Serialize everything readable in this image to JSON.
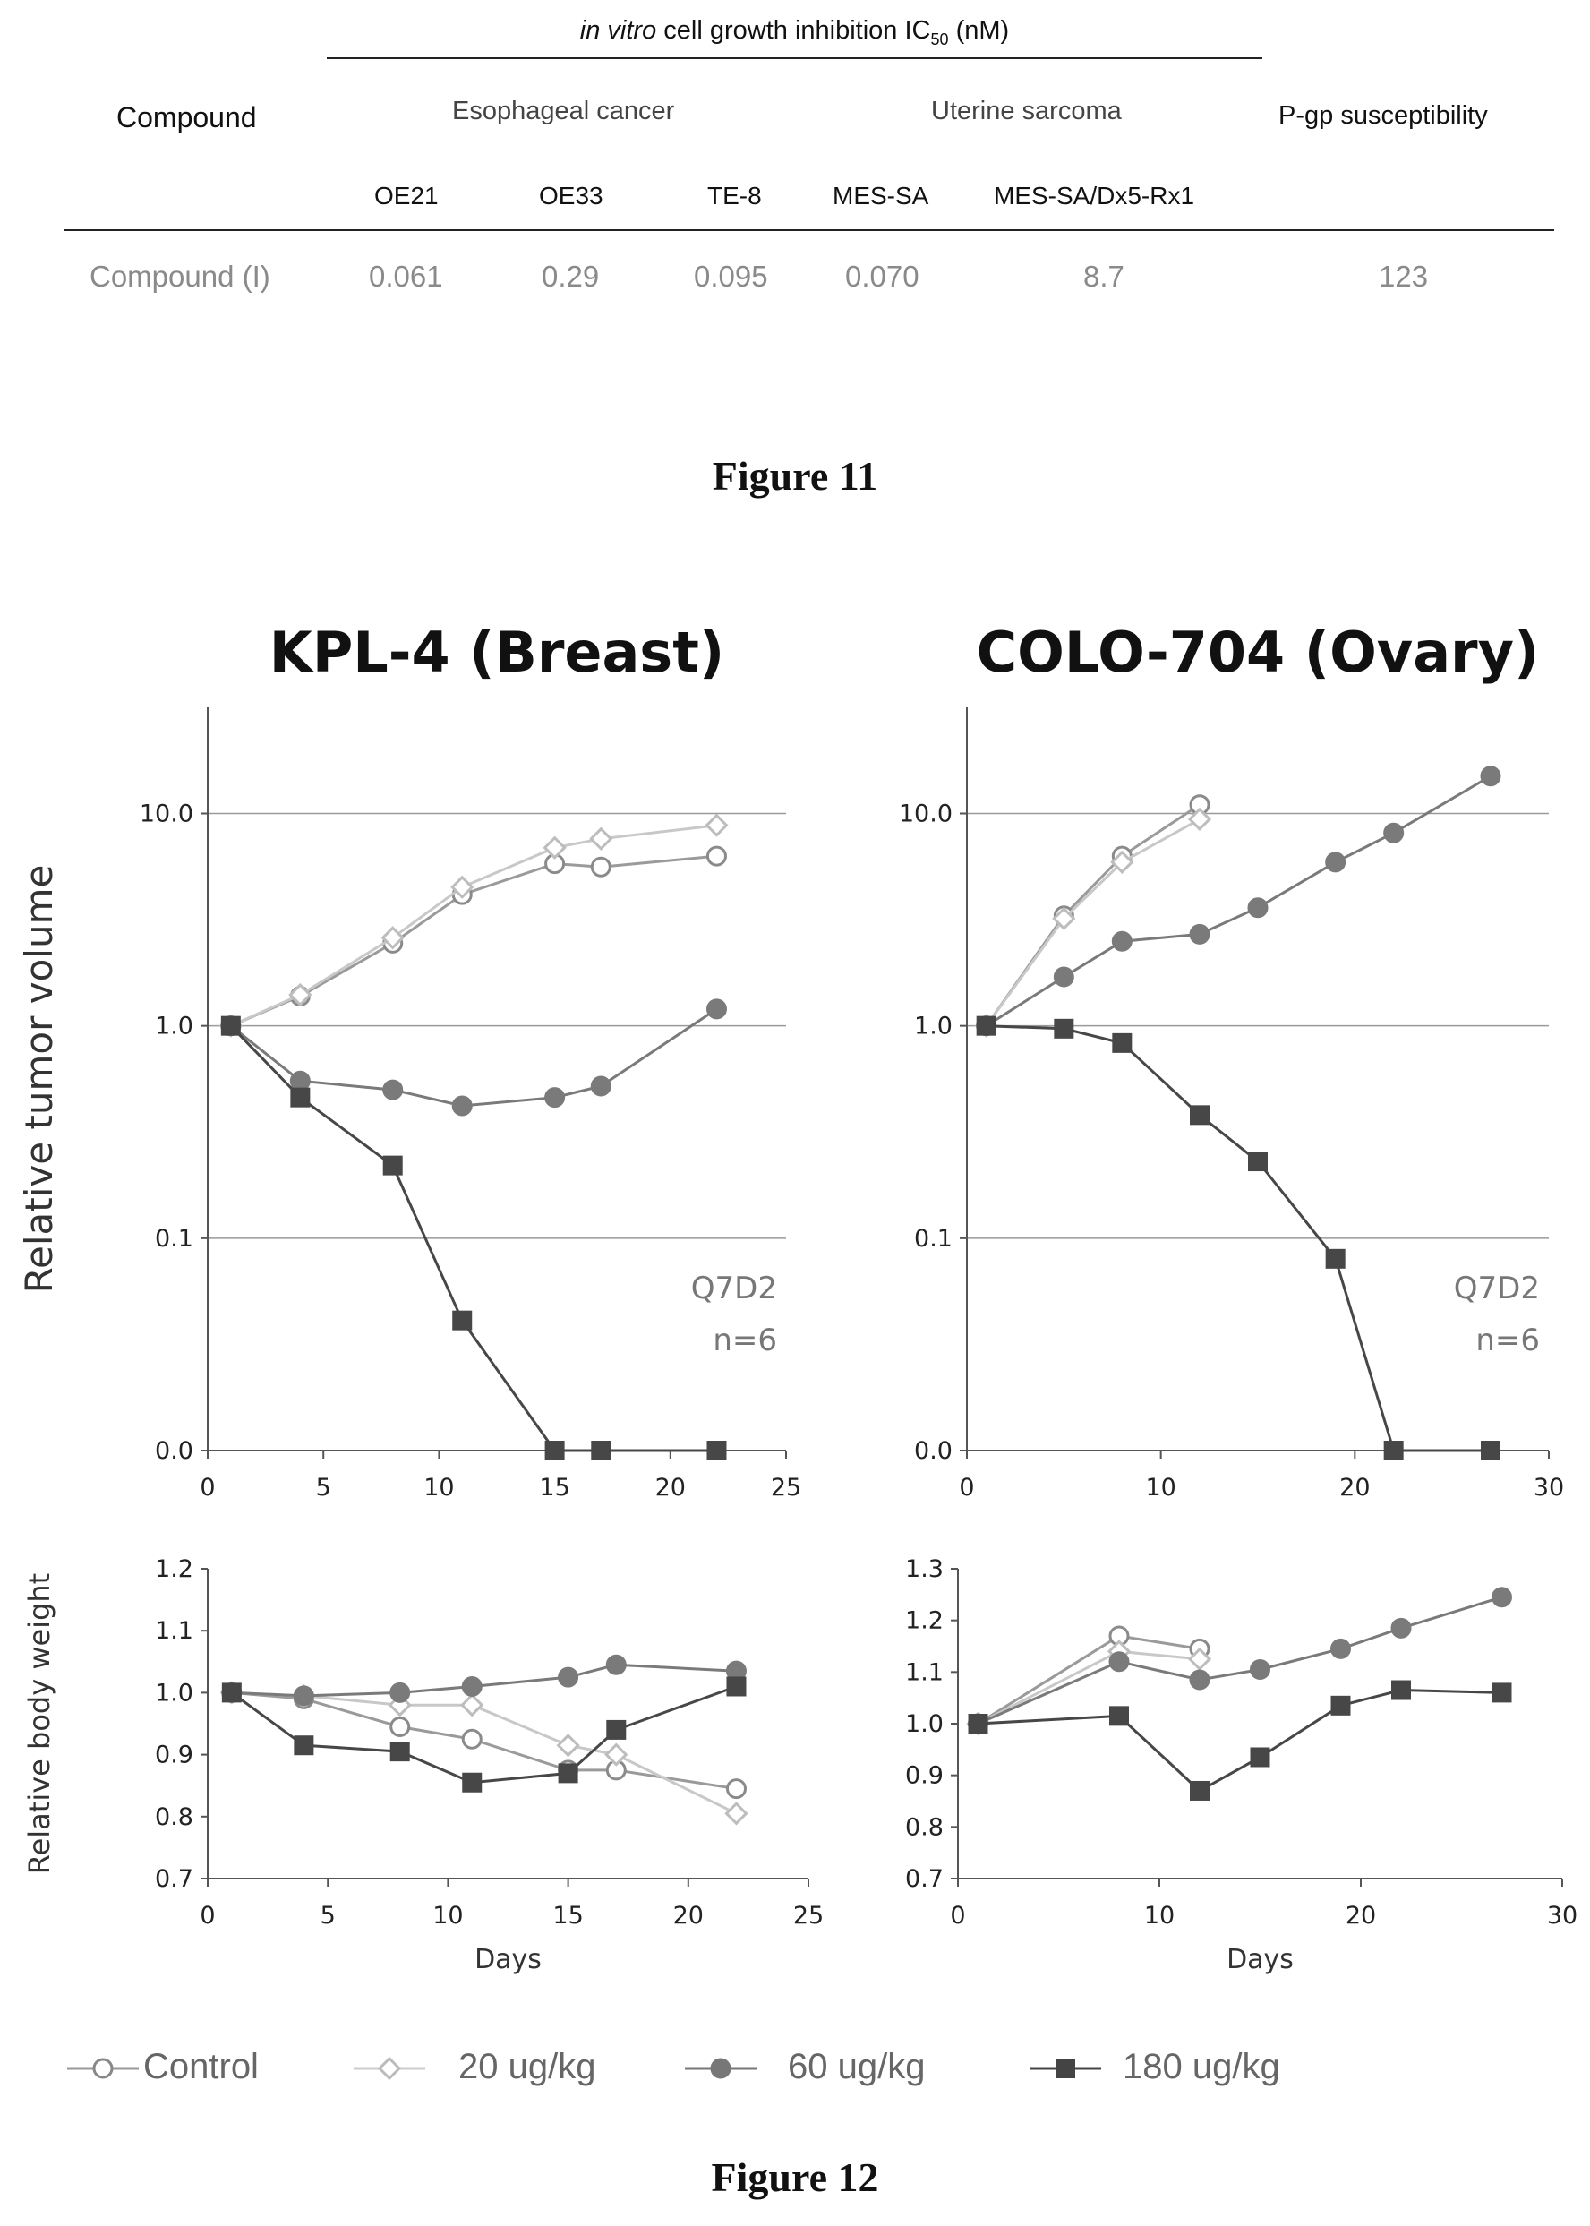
{
  "figure11": {
    "table_title_italic": "in vitro",
    "table_title_rest": "cell growth inhibition IC",
    "table_title_sub": "50",
    "table_title_unit": "(nM)",
    "header_compound": "Compound",
    "group_esophageal": "Esophageal cancer",
    "group_uterine": "Uterine sarcoma",
    "header_pgp": "P-gp susceptibility",
    "cell_lines": [
      "OE21",
      "OE33",
      "TE-8",
      "MES-SA",
      "MES-SA/Dx5-Rx1"
    ],
    "row_label": "Compound (I)",
    "row_values": [
      "0.061",
      "0.29",
      "0.095",
      "0.070",
      "8.7",
      "123"
    ],
    "caption": "Figure 11"
  },
  "figure12": {
    "caption": "Figure 12",
    "legend": [
      "Control",
      "20 ug/kg",
      "60 ug/kg",
      "180 ug/kg"
    ]
  },
  "chart_data": [
    {
      "type": "line",
      "title": "KPL-4 (Breast)",
      "ylabel": "Relative tumor volume",
      "xlim": [
        0,
        25
      ],
      "xticks": [
        "0",
        "5",
        "10",
        "15",
        "20",
        "25"
      ],
      "yscale": "log",
      "yticks": [
        "0.0",
        "0.1",
        "1.0",
        "10.0"
      ],
      "annotation": [
        "Q7D2",
        "n=6"
      ],
      "series": [
        {
          "name": "Control",
          "x": [
            1,
            4,
            8,
            11,
            15,
            17,
            22
          ],
          "y": [
            1.0,
            1.38,
            2.45,
            4.15,
            5.8,
            5.6,
            6.3
          ]
        },
        {
          "name": "20 ug/kg",
          "x": [
            1,
            4,
            8,
            11,
            15,
            17,
            22
          ],
          "y": [
            1.0,
            1.4,
            2.6,
            4.5,
            6.9,
            7.6,
            8.8
          ]
        },
        {
          "name": "60 ug/kg",
          "x": [
            1,
            4,
            8,
            11,
            15,
            17,
            22
          ],
          "y": [
            1.0,
            0.55,
            0.5,
            0.42,
            0.46,
            0.52,
            1.2
          ]
        },
        {
          "name": "180 ug/kg",
          "x": [
            1,
            4,
            8,
            11,
            15,
            17,
            22
          ],
          "y": [
            1.0,
            0.46,
            0.22,
            0.041,
            0.0,
            0.0,
            0.0
          ]
        }
      ]
    },
    {
      "type": "line",
      "title": "COLO-704 (Ovary)",
      "ylabel": "Relative tumor volume",
      "xlim": [
        0,
        30
      ],
      "xticks": [
        "0",
        "10",
        "20",
        "30"
      ],
      "yscale": "log",
      "yticks": [
        "0.0",
        "0.1",
        "1.0",
        "10.0"
      ],
      "annotation": [
        "Q7D2",
        "n=6"
      ],
      "series": [
        {
          "name": "Control",
          "x": [
            1,
            5,
            8,
            12
          ],
          "y": [
            1.0,
            3.3,
            6.3,
            11.0
          ]
        },
        {
          "name": "20 ug/kg",
          "x": [
            1,
            5,
            8,
            12
          ],
          "y": [
            1.0,
            3.2,
            5.9,
            9.4
          ]
        },
        {
          "name": "60 ug/kg",
          "x": [
            1,
            5,
            8,
            12,
            15,
            19,
            22,
            27
          ],
          "y": [
            1.0,
            1.7,
            2.5,
            2.7,
            3.6,
            5.9,
            8.1,
            15.0
          ]
        },
        {
          "name": "180 ug/kg",
          "x": [
            1,
            5,
            8,
            12,
            15,
            19,
            22,
            27
          ],
          "y": [
            1.0,
            0.97,
            0.83,
            0.38,
            0.23,
            0.08,
            0.0,
            0.0
          ]
        }
      ]
    },
    {
      "type": "line",
      "ylabel": "Relative body weight",
      "xlabel": "Days",
      "xlim": [
        0,
        25
      ],
      "ylim": [
        0.7,
        1.2
      ],
      "xticks": [
        "0",
        "5",
        "10",
        "15",
        "20",
        "25"
      ],
      "yticks": [
        "0.7",
        "0.8",
        "0.9",
        "1.0",
        "1.1",
        "1.2"
      ],
      "series": [
        {
          "name": "Control",
          "x": [
            1,
            4,
            8,
            11,
            15,
            17,
            22
          ],
          "y": [
            1.0,
            0.99,
            0.945,
            0.925,
            0.875,
            0.875,
            0.845
          ]
        },
        {
          "name": "20 ug/kg",
          "x": [
            1,
            4,
            8,
            11,
            15,
            17,
            22
          ],
          "y": [
            1.0,
            0.995,
            0.98,
            0.98,
            0.915,
            0.9,
            0.805
          ]
        },
        {
          "name": "60 ug/kg",
          "x": [
            1,
            4,
            8,
            11,
            15,
            17,
            22
          ],
          "y": [
            1.0,
            0.995,
            1.0,
            1.01,
            1.025,
            1.045,
            1.035
          ]
        },
        {
          "name": "180 ug/kg",
          "x": [
            1,
            4,
            8,
            11,
            15,
            17,
            22
          ],
          "y": [
            1.0,
            0.915,
            0.905,
            0.855,
            0.87,
            0.94,
            1.01
          ]
        }
      ]
    },
    {
      "type": "line",
      "xlabel": "Days",
      "xlim": [
        0,
        30
      ],
      "ylim": [
        0.7,
        1.3
      ],
      "xticks": [
        "0",
        "10",
        "20",
        "30"
      ],
      "yticks": [
        "0.7",
        "0.8",
        "0.9",
        "1.0",
        "1.1",
        "1.2",
        "1.3"
      ],
      "series": [
        {
          "name": "Control",
          "x": [
            1,
            8,
            12
          ],
          "y": [
            1.0,
            1.17,
            1.145
          ]
        },
        {
          "name": "20 ug/kg",
          "x": [
            1,
            8,
            12
          ],
          "y": [
            1.0,
            1.14,
            1.125
          ]
        },
        {
          "name": "60 ug/kg",
          "x": [
            1,
            8,
            12,
            15,
            19,
            22,
            27
          ],
          "y": [
            1.0,
            1.12,
            1.085,
            1.105,
            1.145,
            1.185,
            1.245
          ]
        },
        {
          "name": "180 ug/kg",
          "x": [
            1,
            8,
            12,
            15,
            19,
            22,
            27
          ],
          "y": [
            1.0,
            1.015,
            0.87,
            0.935,
            1.035,
            1.065,
            1.06
          ]
        }
      ]
    }
  ]
}
